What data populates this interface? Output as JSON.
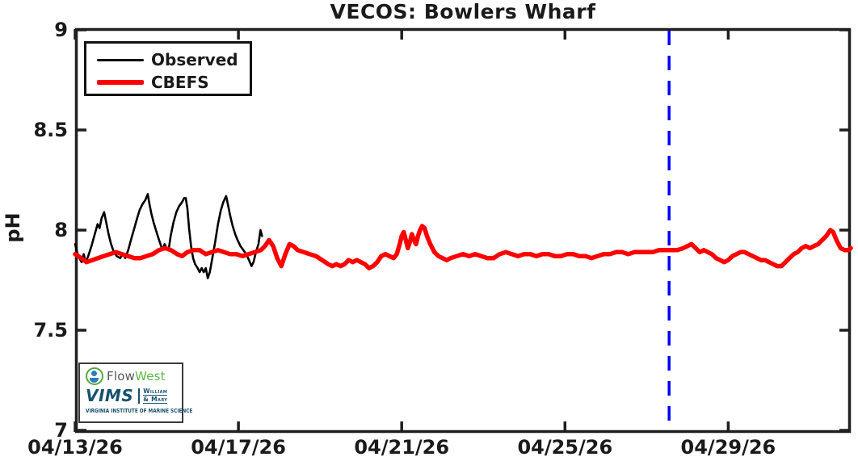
{
  "colors": {
    "axis": "#1f1f1f",
    "background": "#ffffff",
    "observed": "#000000",
    "cbefs": "#ff0000",
    "forecast_line": "#0000ff"
  },
  "logo": {
    "flowwest_part1": "Flow",
    "flowwest_part2": "West",
    "vims": "VIMS",
    "wm_line1": "William",
    "wm_line2": "& Mary",
    "caption": "VIRGINIA INSTITUTE OF MARINE SCIENCE"
  },
  "chart_data": {
    "type": "line",
    "title": "VECOS: Bowlers Wharf",
    "xlabel": "",
    "ylabel": "pH",
    "ylim": [
      7,
      9
    ],
    "x_range_days": [
      0,
      19
    ],
    "x_start_date": "04/13/26",
    "grid": false,
    "legend_position": "top-left",
    "y_ticks": [
      {
        "value": 9,
        "label": "9"
      },
      {
        "value": 8.5,
        "label": "8.5"
      },
      {
        "value": 8,
        "label": "8"
      },
      {
        "value": 7.5,
        "label": "7.5"
      },
      {
        "value": 7,
        "label": "7"
      }
    ],
    "x_ticks": [
      {
        "day": 0,
        "label": "04/13/26"
      },
      {
        "day": 4,
        "label": "04/17/26"
      },
      {
        "day": 8,
        "label": "04/21/26"
      },
      {
        "day": 12,
        "label": "04/25/26"
      },
      {
        "day": 16,
        "label": "04/29/26"
      }
    ],
    "annotations": [
      {
        "type": "vertical-line",
        "day": 14.55,
        "color": "#0000ff",
        "style": "dashed",
        "width": 3.5
      }
    ],
    "series": [
      {
        "name": "Observed",
        "color": "#000000",
        "line_width": 2.6,
        "points": [
          [
            0,
            7.93
          ],
          [
            0.05,
            7.89
          ],
          [
            0.1,
            7.86
          ],
          [
            0.16,
            7.84
          ],
          [
            0.21,
            7.88
          ],
          [
            0.26,
            7.84
          ],
          [
            0.32,
            7.87
          ],
          [
            0.4,
            7.92
          ],
          [
            0.48,
            7.98
          ],
          [
            0.55,
            8.03
          ],
          [
            0.6,
            8.01
          ],
          [
            0.65,
            8.06
          ],
          [
            0.71,
            8.09
          ],
          [
            0.76,
            8.04
          ],
          [
            0.82,
            7.98
          ],
          [
            0.88,
            7.93
          ],
          [
            0.95,
            7.89
          ],
          [
            1.02,
            7.87
          ],
          [
            1.1,
            7.86
          ],
          [
            1.17,
            7.88
          ],
          [
            1.23,
            7.86
          ],
          [
            1.3,
            7.9
          ],
          [
            1.38,
            7.96
          ],
          [
            1.45,
            8.01
          ],
          [
            1.52,
            8.06
          ],
          [
            1.58,
            8.1
          ],
          [
            1.65,
            8.13
          ],
          [
            1.72,
            8.15
          ],
          [
            1.78,
            8.18
          ],
          [
            1.82,
            8.13
          ],
          [
            1.87,
            8.08
          ],
          [
            1.92,
            8.04
          ],
          [
            1.98,
            8
          ],
          [
            2.04,
            7.96
          ],
          [
            2.09,
            7.93
          ],
          [
            2.14,
            7.9
          ],
          [
            2.19,
            7.93
          ],
          [
            2.24,
            7.91
          ],
          [
            2.29,
            7.9
          ],
          [
            2.34,
            7.97
          ],
          [
            2.41,
            8.04
          ],
          [
            2.48,
            8.09
          ],
          [
            2.55,
            8.12
          ],
          [
            2.62,
            8.14
          ],
          [
            2.67,
            8.16
          ],
          [
            2.71,
            8.16
          ],
          [
            2.75,
            8.11
          ],
          [
            2.79,
            8.01
          ],
          [
            2.84,
            7.92
          ],
          [
            2.89,
            7.86
          ],
          [
            2.94,
            7.83
          ],
          [
            3,
            7.81
          ],
          [
            3.05,
            7.79
          ],
          [
            3.1,
            7.81
          ],
          [
            3.15,
            7.79
          ],
          [
            3.2,
            7.81
          ],
          [
            3.25,
            7.76
          ],
          [
            3.3,
            7.79
          ],
          [
            3.36,
            7.86
          ],
          [
            3.43,
            7.94
          ],
          [
            3.5,
            8.03
          ],
          [
            3.57,
            8.1
          ],
          [
            3.63,
            8.14
          ],
          [
            3.7,
            8.17
          ],
          [
            3.75,
            8.12
          ],
          [
            3.8,
            8.07
          ],
          [
            3.86,
            8.02
          ],
          [
            3.92,
            7.98
          ],
          [
            3.98,
            7.95
          ],
          [
            4.05,
            7.92
          ],
          [
            4.12,
            7.9
          ],
          [
            4.19,
            7.88
          ],
          [
            4.26,
            7.85
          ],
          [
            4.32,
            7.82
          ],
          [
            4.37,
            7.84
          ],
          [
            4.43,
            7.89
          ],
          [
            4.49,
            7.93
          ],
          [
            4.54,
            8
          ],
          [
            4.58,
            7.97
          ]
        ]
      },
      {
        "name": "CBEFS",
        "color": "#ff0000",
        "line_width": 5.5,
        "points": [
          [
            0,
            7.88
          ],
          [
            0.15,
            7.86
          ],
          [
            0.28,
            7.84
          ],
          [
            0.42,
            7.85
          ],
          [
            0.56,
            7.86
          ],
          [
            0.7,
            7.87
          ],
          [
            0.85,
            7.88
          ],
          [
            1,
            7.89
          ],
          [
            1.15,
            7.88
          ],
          [
            1.3,
            7.87
          ],
          [
            1.45,
            7.86
          ],
          [
            1.6,
            7.86
          ],
          [
            1.75,
            7.87
          ],
          [
            1.9,
            7.88
          ],
          [
            2.05,
            7.9
          ],
          [
            2.2,
            7.91
          ],
          [
            2.35,
            7.9
          ],
          [
            2.5,
            7.88
          ],
          [
            2.62,
            7.87
          ],
          [
            2.75,
            7.89
          ],
          [
            2.9,
            7.9
          ],
          [
            3.05,
            7.9
          ],
          [
            3.2,
            7.88
          ],
          [
            3.35,
            7.89
          ],
          [
            3.5,
            7.9
          ],
          [
            3.65,
            7.89
          ],
          [
            3.8,
            7.88
          ],
          [
            3.95,
            7.88
          ],
          [
            4.1,
            7.87
          ],
          [
            4.25,
            7.88
          ],
          [
            4.4,
            7.89
          ],
          [
            4.55,
            7.9
          ],
          [
            4.65,
            7.92
          ],
          [
            4.75,
            7.95
          ],
          [
            4.85,
            7.92
          ],
          [
            4.95,
            7.86
          ],
          [
            5.05,
            7.82
          ],
          [
            5.15,
            7.88
          ],
          [
            5.25,
            7.93
          ],
          [
            5.35,
            7.92
          ],
          [
            5.45,
            7.9
          ],
          [
            5.6,
            7.89
          ],
          [
            5.75,
            7.88
          ],
          [
            5.9,
            7.87
          ],
          [
            6.05,
            7.85
          ],
          [
            6.2,
            7.83
          ],
          [
            6.3,
            7.82
          ],
          [
            6.4,
            7.83
          ],
          [
            6.5,
            7.82
          ],
          [
            6.6,
            7.83
          ],
          [
            6.7,
            7.85
          ],
          [
            6.8,
            7.84
          ],
          [
            6.9,
            7.85
          ],
          [
            7,
            7.84
          ],
          [
            7.1,
            7.83
          ],
          [
            7.2,
            7.81
          ],
          [
            7.3,
            7.82
          ],
          [
            7.4,
            7.84
          ],
          [
            7.5,
            7.87
          ],
          [
            7.6,
            7.88
          ],
          [
            7.7,
            7.87
          ],
          [
            7.8,
            7.86
          ],
          [
            7.88,
            7.88
          ],
          [
            7.95,
            7.93
          ],
          [
            8,
            7.97
          ],
          [
            8.05,
            7.99
          ],
          [
            8.1,
            7.95
          ],
          [
            8.15,
            7.91
          ],
          [
            8.2,
            7.94
          ],
          [
            8.25,
            7.98
          ],
          [
            8.3,
            7.95
          ],
          [
            8.35,
            7.93
          ],
          [
            8.4,
            7.97
          ],
          [
            8.45,
            8
          ],
          [
            8.5,
            8.02
          ],
          [
            8.56,
            8.01
          ],
          [
            8.62,
            7.97
          ],
          [
            8.7,
            7.93
          ],
          [
            8.8,
            7.89
          ],
          [
            8.9,
            7.87
          ],
          [
            9,
            7.86
          ],
          [
            9.1,
            7.85
          ],
          [
            9.2,
            7.86
          ],
          [
            9.35,
            7.87
          ],
          [
            9.5,
            7.88
          ],
          [
            9.65,
            7.87
          ],
          [
            9.8,
            7.88
          ],
          [
            9.95,
            7.87
          ],
          [
            10.1,
            7.86
          ],
          [
            10.25,
            7.86
          ],
          [
            10.4,
            7.88
          ],
          [
            10.55,
            7.89
          ],
          [
            10.7,
            7.88
          ],
          [
            10.85,
            7.87
          ],
          [
            11,
            7.88
          ],
          [
            11.15,
            7.88
          ],
          [
            11.3,
            7.87
          ],
          [
            11.45,
            7.88
          ],
          [
            11.6,
            7.88
          ],
          [
            11.75,
            7.87
          ],
          [
            11.9,
            7.87
          ],
          [
            12.05,
            7.88
          ],
          [
            12.2,
            7.88
          ],
          [
            12.35,
            7.87
          ],
          [
            12.5,
            7.87
          ],
          [
            12.65,
            7.86
          ],
          [
            12.8,
            7.87
          ],
          [
            12.95,
            7.88
          ],
          [
            13.1,
            7.88
          ],
          [
            13.25,
            7.89
          ],
          [
            13.4,
            7.89
          ],
          [
            13.55,
            7.88
          ],
          [
            13.7,
            7.89
          ],
          [
            13.85,
            7.89
          ],
          [
            14,
            7.89
          ],
          [
            14.15,
            7.89
          ],
          [
            14.3,
            7.9
          ],
          [
            14.45,
            7.9
          ],
          [
            14.6,
            7.9
          ],
          [
            14.75,
            7.9
          ],
          [
            14.9,
            7.91
          ],
          [
            15,
            7.92
          ],
          [
            15.1,
            7.93
          ],
          [
            15.2,
            7.91
          ],
          [
            15.3,
            7.89
          ],
          [
            15.4,
            7.9
          ],
          [
            15.5,
            7.89
          ],
          [
            15.6,
            7.88
          ],
          [
            15.7,
            7.86
          ],
          [
            15.8,
            7.85
          ],
          [
            15.9,
            7.84
          ],
          [
            16,
            7.85
          ],
          [
            16.1,
            7.87
          ],
          [
            16.2,
            7.88
          ],
          [
            16.3,
            7.89
          ],
          [
            16.4,
            7.89
          ],
          [
            16.5,
            7.88
          ],
          [
            16.6,
            7.87
          ],
          [
            16.7,
            7.86
          ],
          [
            16.8,
            7.85
          ],
          [
            16.9,
            7.85
          ],
          [
            17,
            7.84
          ],
          [
            17.1,
            7.83
          ],
          [
            17.2,
            7.82
          ],
          [
            17.3,
            7.82
          ],
          [
            17.4,
            7.84
          ],
          [
            17.5,
            7.86
          ],
          [
            17.6,
            7.88
          ],
          [
            17.7,
            7.89
          ],
          [
            17.8,
            7.91
          ],
          [
            17.9,
            7.92
          ],
          [
            18,
            7.91
          ],
          [
            18.1,
            7.92
          ],
          [
            18.2,
            7.93
          ],
          [
            18.3,
            7.95
          ],
          [
            18.4,
            7.97
          ],
          [
            18.5,
            8
          ],
          [
            18.57,
            7.99
          ],
          [
            18.65,
            7.95
          ],
          [
            18.75,
            7.91
          ],
          [
            18.85,
            7.9
          ],
          [
            18.95,
            7.9
          ],
          [
            19,
            7.91
          ]
        ]
      }
    ]
  }
}
